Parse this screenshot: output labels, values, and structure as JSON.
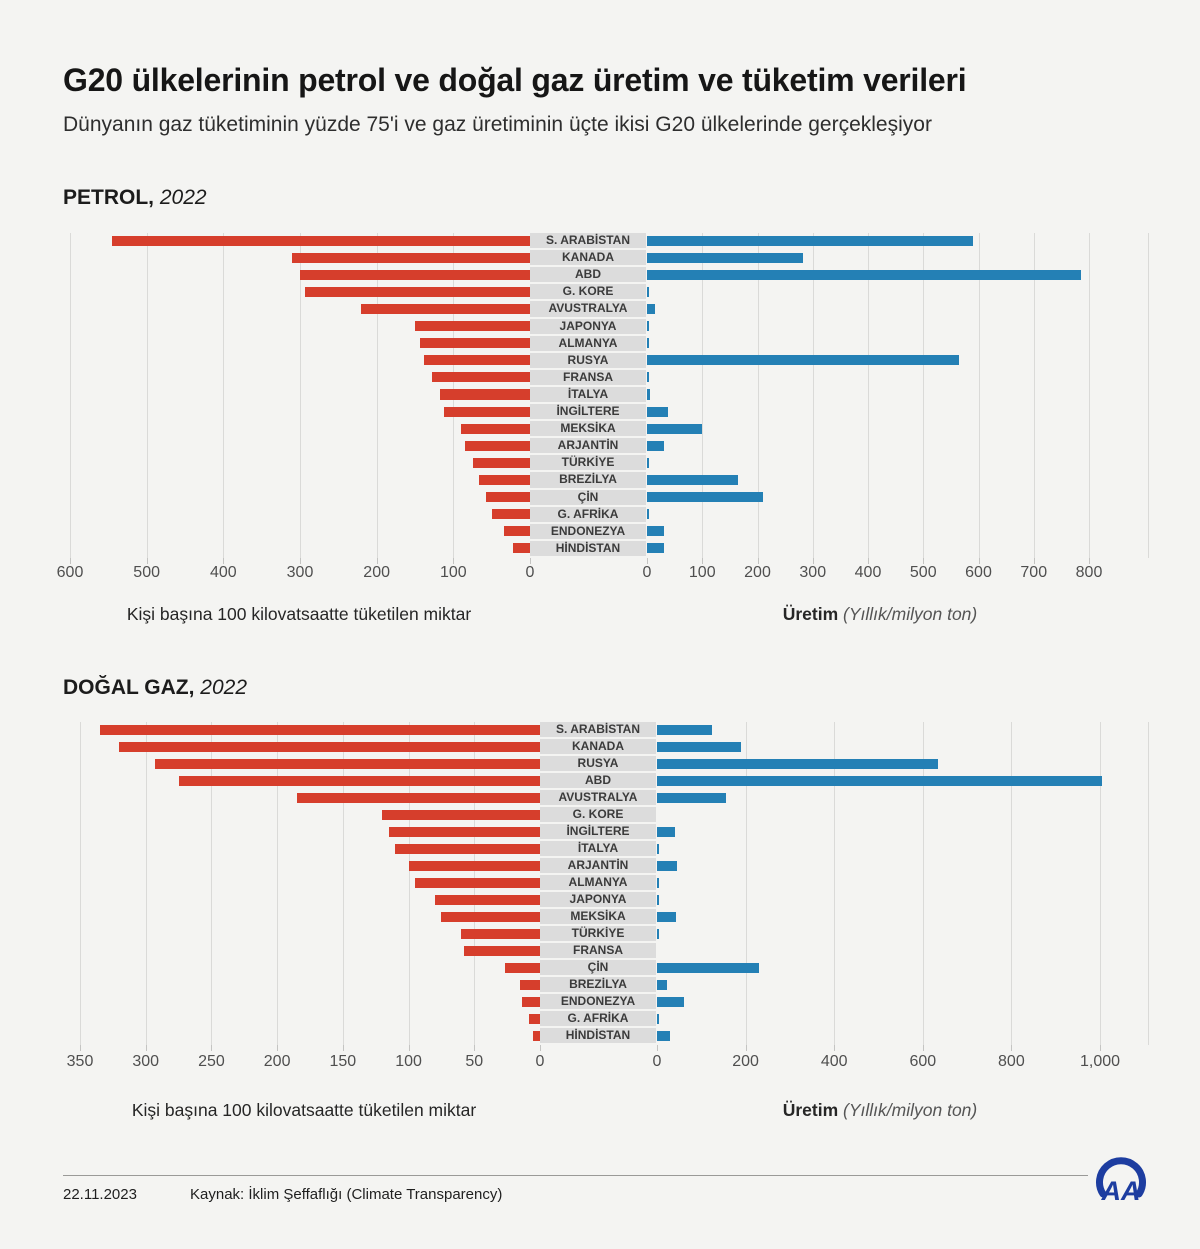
{
  "header": {
    "title": "G20 ülkelerinin petrol ve doğal gaz üretim ve tüketim verileri",
    "subtitle": "Dünyanın gaz tüketiminin yüzde 75'i ve gaz üretiminin üçte ikisi G20 ülkelerinde gerçekleşiyor"
  },
  "chart_data": [
    {
      "type": "bar",
      "diverging": true,
      "title": "PETROL,",
      "year": "2022",
      "grid": true,
      "consumption_axis": {
        "caption": "Kişi başına 100 kilovatsaatte tüketilen miktar",
        "ticks": [
          "600",
          "500",
          "400",
          "300",
          "200",
          "100",
          "0"
        ],
        "tick_values": [
          600,
          500,
          400,
          300,
          200,
          100,
          0
        ],
        "range": [
          0,
          600
        ],
        "direction": "right-to-left"
      },
      "production_axis": {
        "caption_main": "Üretim",
        "caption_note": "(Yıllık/milyon ton)",
        "ticks": [
          "0",
          "100",
          "200",
          "300",
          "400",
          "500",
          "600",
          "700",
          "800"
        ],
        "tick_values": [
          0,
          100,
          200,
          300,
          400,
          500,
          600,
          700,
          800
        ],
        "range": [
          0,
          800
        ],
        "direction": "left-to-right"
      },
      "rows": [
        {
          "country": "S. ARABİSTAN",
          "consumption": 545,
          "production": 590
        },
        {
          "country": "KANADA",
          "consumption": 310,
          "production": 283
        },
        {
          "country": "ABD",
          "consumption": 300,
          "production": 785
        },
        {
          "country": "G. KORE",
          "consumption": 293,
          "production": 2
        },
        {
          "country": "AVUSTRALYA",
          "consumption": 220,
          "production": 15
        },
        {
          "country": "JAPONYA",
          "consumption": 150,
          "production": 1
        },
        {
          "country": "ALMANYA",
          "consumption": 143,
          "production": 4
        },
        {
          "country": "RUSYA",
          "consumption": 138,
          "production": 565
        },
        {
          "country": "FRANSA",
          "consumption": 128,
          "production": 2
        },
        {
          "country": "İTALYA",
          "consumption": 118,
          "production": 5
        },
        {
          "country": "İNGİLTERE",
          "consumption": 112,
          "production": 38
        },
        {
          "country": "MEKSİKA",
          "consumption": 90,
          "production": 100
        },
        {
          "country": "ARJANTİN",
          "consumption": 85,
          "production": 31
        },
        {
          "country": "TÜRKİYE",
          "consumption": 74,
          "production": 4
        },
        {
          "country": "BREZİLYA",
          "consumption": 67,
          "production": 165
        },
        {
          "country": "ÇİN",
          "consumption": 57,
          "production": 210
        },
        {
          "country": "G. AFRİKA",
          "consumption": 50,
          "production": 2
        },
        {
          "country": "ENDONEZYA",
          "consumption": 34,
          "production": 30
        },
        {
          "country": "HİNDİSTAN",
          "consumption": 22,
          "production": 30
        }
      ]
    },
    {
      "type": "bar",
      "diverging": true,
      "title": "DOĞAL GAZ,",
      "year": "2022",
      "grid": true,
      "consumption_axis": {
        "caption": "Kişi başına 100 kilovatsaatte tüketilen miktar",
        "ticks": [
          "350",
          "300",
          "250",
          "200",
          "150",
          "100",
          "50",
          "0"
        ],
        "tick_values": [
          350,
          300,
          250,
          200,
          150,
          100,
          50,
          0
        ],
        "range": [
          0,
          350
        ],
        "direction": "right-to-left"
      },
      "production_axis": {
        "caption_main": "Üretim",
        "caption_note": "(Yıllık/milyon ton)",
        "ticks": [
          "0",
          "200",
          "400",
          "600",
          "800",
          "1,000"
        ],
        "tick_values": [
          0,
          200,
          400,
          600,
          800,
          1000
        ],
        "range": [
          0,
          1000
        ],
        "direction": "left-to-right"
      },
      "rows": [
        {
          "country": "S. ARABİSTAN",
          "consumption": 335,
          "production": 125
        },
        {
          "country": "KANADA",
          "consumption": 320,
          "production": 190
        },
        {
          "country": "RUSYA",
          "consumption": 293,
          "production": 635
        },
        {
          "country": "ABD",
          "consumption": 275,
          "production": 1005
        },
        {
          "country": "AVUSTRALYA",
          "consumption": 185,
          "production": 155
        },
        {
          "country": "G. KORE",
          "consumption": 120,
          "production": 0
        },
        {
          "country": "İNGİLTERE",
          "consumption": 115,
          "production": 40
        },
        {
          "country": "İTALYA",
          "consumption": 110,
          "production": 3
        },
        {
          "country": "ARJANTİN",
          "consumption": 100,
          "production": 45
        },
        {
          "country": "ALMANYA",
          "consumption": 95,
          "production": 5
        },
        {
          "country": "JAPONYA",
          "consumption": 80,
          "production": 2
        },
        {
          "country": "MEKSİKA",
          "consumption": 75,
          "production": 42
        },
        {
          "country": "TÜRKİYE",
          "consumption": 60,
          "production": 2
        },
        {
          "country": "FRANSA",
          "consumption": 58,
          "production": 0
        },
        {
          "country": "ÇİN",
          "consumption": 27,
          "production": 230
        },
        {
          "country": "BREZİLYA",
          "consumption": 15,
          "production": 23
        },
        {
          "country": "ENDONEZYA",
          "consumption": 14,
          "production": 60
        },
        {
          "country": "G. AFRİKA",
          "consumption": 8,
          "production": 2
        },
        {
          "country": "HİNDİSTAN",
          "consumption": 5,
          "production": 30
        }
      ]
    }
  ],
  "footer": {
    "date": "22.11.2023",
    "source": "Kaynak: İklim Şeffaflığı (Climate Transparency)",
    "logo_alt": "AA"
  },
  "colors": {
    "consumption_bar": "#d63e2c",
    "production_bar": "#2480b5",
    "label_bg": "#dcdcdc",
    "grid": "#dadad8",
    "background": "#f4f4f2",
    "logo": "#1d3da0"
  }
}
